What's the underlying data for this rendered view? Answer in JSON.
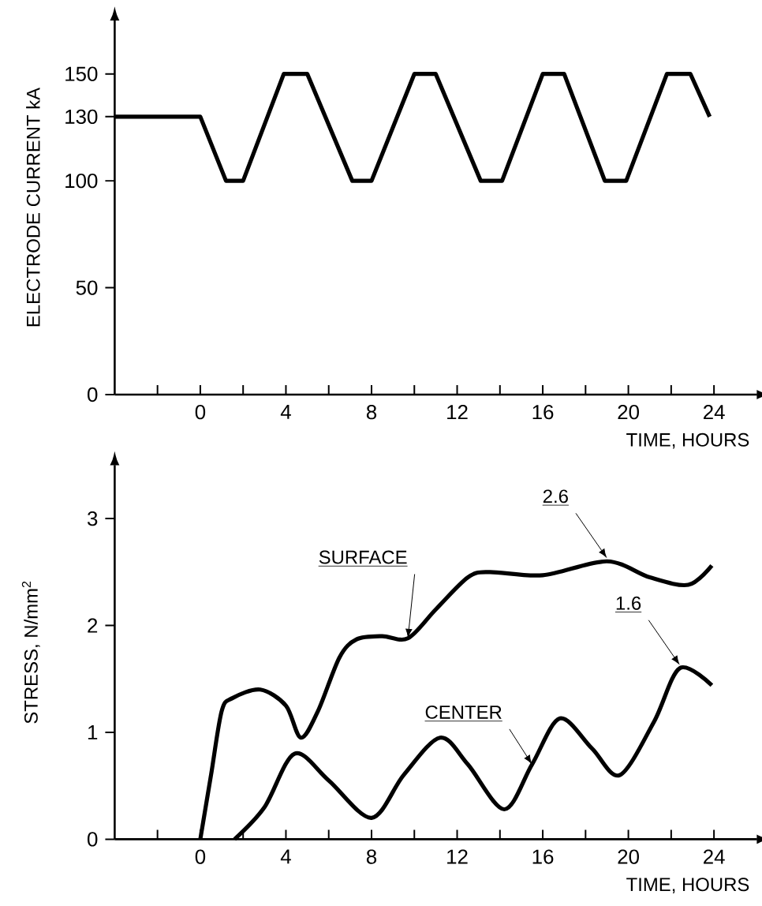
{
  "chart_data": [
    {
      "type": "line",
      "xlabel": "TIME, HOURS",
      "ylabel": "ELECTRODE CURRENT kA",
      "x": [
        -4,
        0,
        1.2,
        2,
        3.9,
        5,
        7.1,
        8,
        10,
        11,
        13.1,
        14.1,
        16,
        17,
        18.9,
        19.9,
        21.8,
        22.9,
        23.8
      ],
      "series": [
        {
          "color": "#000000",
          "values": [
            130,
            130,
            100,
            100,
            150,
            150,
            100,
            100,
            150,
            150,
            100,
            100,
            150,
            150,
            100,
            100,
            150,
            150,
            130
          ]
        }
      ],
      "xlim": [
        -4,
        26
      ],
      "ylim": [
        0,
        175
      ],
      "xticks": [
        {
          "value": -2,
          "label": null
        },
        0,
        {
          "value": 2,
          "label": null
        },
        4,
        {
          "value": 6,
          "label": null
        },
        8,
        {
          "value": 10,
          "label": null
        },
        12,
        {
          "value": 14,
          "label": null
        },
        16,
        {
          "value": 18,
          "label": null
        },
        20,
        {
          "value": 22,
          "label": null
        },
        24
      ],
      "yticks": [
        0,
        50,
        100,
        130,
        150
      ],
      "grid": false,
      "legend": false,
      "marker": "none",
      "line_style": "solid"
    },
    {
      "type": "line",
      "xlabel": "TIME, HOURS",
      "ylabel": "STRESS, N/mm$^{2}$",
      "series": [
        {
          "name": "SURFACE",
          "color": "#000000",
          "x": [
            0,
            0.5,
            1,
            1.5,
            2.8,
            4,
            4.7,
            5.5,
            6.5,
            7.3,
            8.5,
            9.7,
            11,
            12.5,
            13.5,
            16,
            19,
            21,
            22.8,
            23.9
          ],
          "values": [
            0,
            0.6,
            1.2,
            1.32,
            1.4,
            1.25,
            0.95,
            1.2,
            1.7,
            1.87,
            1.9,
            1.88,
            2.15,
            2.45,
            2.5,
            2.47,
            2.6,
            2.45,
            2.38,
            2.56
          ]
        },
        {
          "name": "CENTER",
          "color": "#000000",
          "x": [
            1.6,
            3,
            4.4,
            6,
            8,
            9.5,
            11.2,
            12.5,
            14.2,
            15.5,
            16.8,
            18.3,
            19.6,
            21.2,
            22.4,
            23.9
          ],
          "values": [
            0,
            0.3,
            0.8,
            0.55,
            0.2,
            0.6,
            0.95,
            0.7,
            0.28,
            0.7,
            1.13,
            0.85,
            0.6,
            1.1,
            1.6,
            1.44
          ]
        }
      ],
      "annotations": [
        {
          "text": "2.6",
          "x": 19,
          "y": 2.6
        },
        {
          "text": "1.6",
          "x": 22.4,
          "y": 1.6
        }
      ],
      "xlim": [
        -4,
        26
      ],
      "ylim": [
        0,
        3.5
      ],
      "xticks": [
        {
          "value": -2,
          "label": null
        },
        0,
        {
          "value": 2,
          "label": null
        },
        4,
        {
          "value": 6,
          "label": null
        },
        8,
        {
          "value": 10,
          "label": null
        },
        12,
        {
          "value": 14,
          "label": null
        },
        16,
        {
          "value": 18,
          "label": null
        },
        20,
        {
          "value": 22,
          "label": null
        },
        24
      ],
      "yticks": [
        0,
        1,
        2,
        3
      ],
      "grid": false,
      "legend": false,
      "marker": "none",
      "line_style": "solid"
    }
  ]
}
